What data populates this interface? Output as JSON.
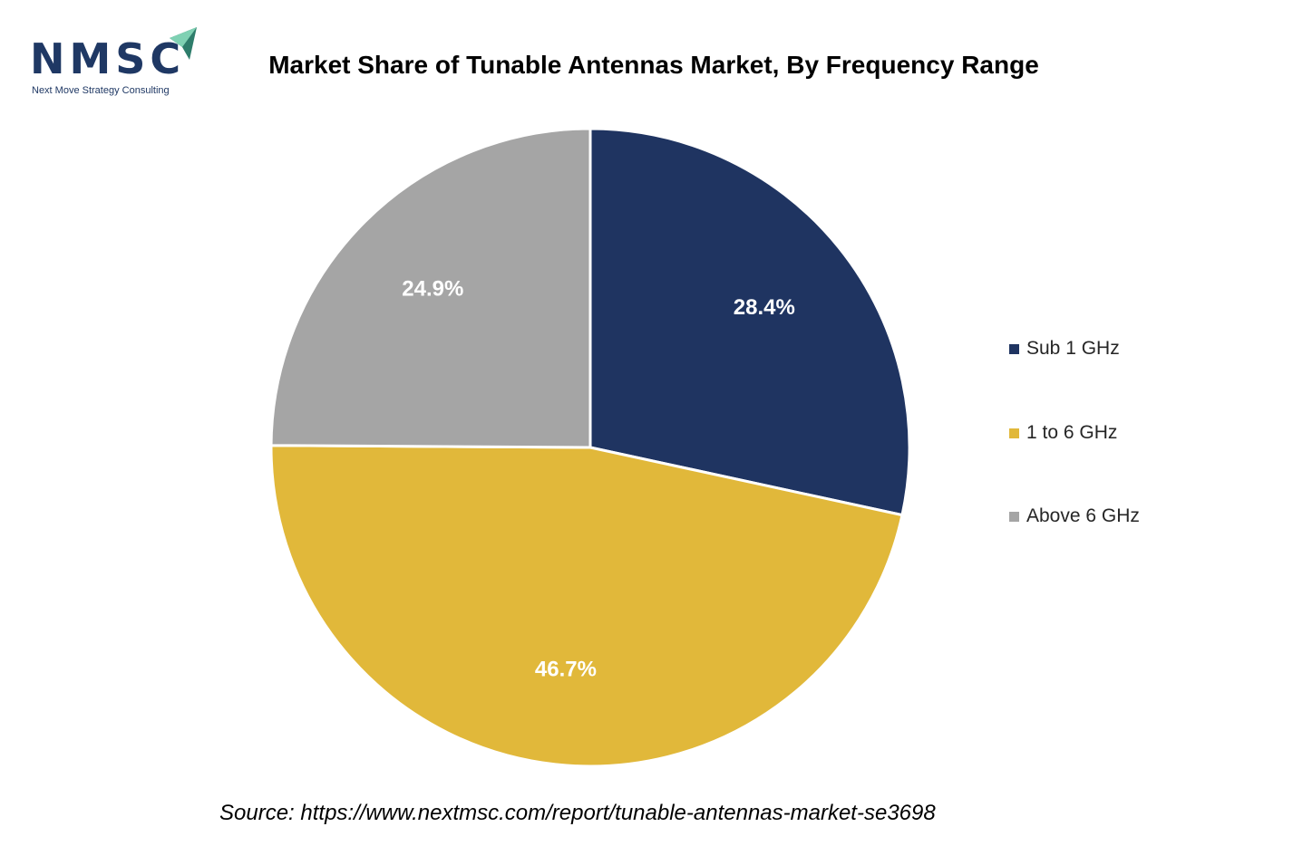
{
  "logo": {
    "letters": "NMSC",
    "tagline": "Next Move Strategy Consulting"
  },
  "chart_data": {
    "type": "pie",
    "title": "Market Share of Tunable Antennas Market, By Frequency Range",
    "categories": [
      "Sub 1 GHz",
      "1 to 6 GHz",
      "Above 6 GHz"
    ],
    "values": [
      28.4,
      46.7,
      24.9
    ],
    "labels": [
      "28.4%",
      "46.7%",
      "24.9%"
    ],
    "colors": [
      "#1f3461",
      "#e1b83a",
      "#a5a5a5"
    ],
    "start_angle_deg": 0,
    "direction": "clockwise",
    "legend_position": "right"
  },
  "source": "Source: https://www.nextmsc.com/report/tunable-antennas-market-se3698"
}
